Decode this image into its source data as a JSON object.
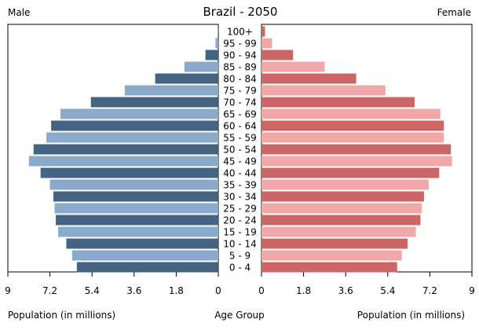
{
  "chart_data": {
    "type": "bar",
    "title": "Brazil - 2050",
    "left_label": "Male",
    "right_label": "Female",
    "xlabel_left": "Population (in millions)",
    "xlabel_center": "Age Group",
    "xlabel_right": "Population (in millions)",
    "xlim": [
      0,
      9
    ],
    "x_ticks": [
      "0",
      "1.8",
      "3.6",
      "5.4",
      "7.2",
      "9"
    ],
    "tick_values": [
      0,
      1.8,
      3.6,
      5.4,
      7.2,
      9
    ],
    "categories": [
      "100+",
      "95 - 99",
      "90 - 94",
      "85 - 89",
      "80 - 84",
      "75 - 79",
      "70 - 74",
      "65 - 69",
      "60 - 64",
      "55 - 59",
      "50 - 54",
      "45 - 49",
      "40 - 44",
      "35 - 39",
      "30 - 34",
      "25 - 29",
      "20 - 24",
      "15 - 19",
      "10 - 14",
      "5 - 9",
      "0 - 4"
    ],
    "series": [
      {
        "name": "Male",
        "values": [
          0.02,
          0.12,
          0.55,
          1.45,
          2.7,
          4.0,
          5.45,
          6.75,
          7.15,
          7.35,
          7.9,
          8.1,
          7.6,
          7.2,
          7.05,
          7.0,
          6.95,
          6.85,
          6.5,
          6.25,
          6.05
        ]
      },
      {
        "name": "Female",
        "values": [
          0.15,
          0.45,
          1.35,
          2.7,
          4.05,
          5.3,
          6.55,
          7.65,
          7.8,
          7.8,
          8.1,
          8.15,
          7.6,
          7.15,
          6.95,
          6.85,
          6.8,
          6.6,
          6.25,
          6.0,
          5.8
        ]
      }
    ],
    "colors": {
      "male_dark": "#456383",
      "male_light": "#8aaacb",
      "female_dark": "#cc6666",
      "female_light": "#f0a8a8"
    }
  }
}
